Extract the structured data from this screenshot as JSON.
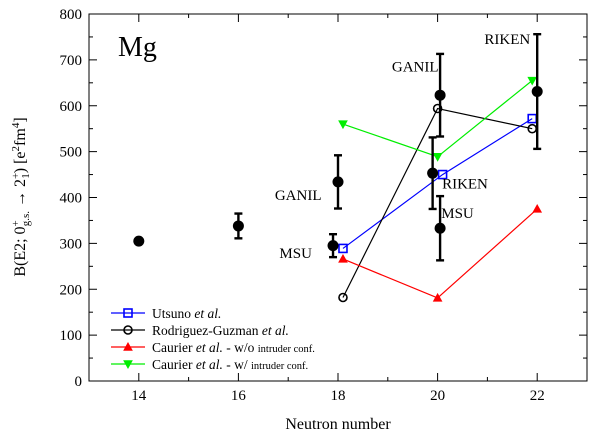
{
  "chart_data": {
    "type": "scatter",
    "panel_label": "Mg",
    "xlabel": "Neutron number",
    "ylabel_parts": {
      "prefix": "B(E2; 0",
      "sup1": "+",
      "sub1": "g.s.",
      "arrow": " → 2",
      "sup2": "+",
      "sub2": "1",
      "mid": ") [e",
      "sup3": "2",
      "mid2": "fm",
      "sup4": "4",
      "suffix": "]"
    },
    "xlim": [
      13,
      23
    ],
    "ylim": [
      0,
      800
    ],
    "x_ticks": [
      14,
      16,
      18,
      20,
      22
    ],
    "y_ticks": [
      0,
      100,
      200,
      300,
      400,
      500,
      600,
      700,
      800
    ],
    "experiment": {
      "points": [
        {
          "x": 14,
          "y": 305,
          "err": 0
        },
        {
          "x": 16,
          "y": 338,
          "err": 27
        },
        {
          "x": 17.9,
          "y": 295,
          "err": 25
        },
        {
          "x": 18.0,
          "y": 434,
          "err": 58
        },
        {
          "x": 19.9,
          "y": 453,
          "err": 78
        },
        {
          "x": 20.05,
          "y": 623,
          "err": 90
        },
        {
          "x": 20.05,
          "y": 333,
          "err": 70
        },
        {
          "x": 22.0,
          "y": 631,
          "err": 125
        }
      ]
    },
    "annotations": [
      {
        "text": "GANIL",
        "x": 17.2,
        "y": 395
      },
      {
        "text": "MSU",
        "x": 17.15,
        "y": 268
      },
      {
        "text": "GANIL",
        "x": 19.55,
        "y": 675
      },
      {
        "text": "RIKEN",
        "x": 20.55,
        "y": 420
      },
      {
        "text": "MSU",
        "x": 20.4,
        "y": 355
      },
      {
        "text": "RIKEN",
        "x": 21.4,
        "y": 735
      }
    ],
    "series": [
      {
        "name_parts": [
          "Utsuno ",
          "et al."
        ],
        "marker": "square",
        "color": "#0000ff",
        "x": [
          18.1,
          20.1,
          21.9
        ],
        "y": [
          289,
          450,
          572
        ]
      },
      {
        "name_parts": [
          "Rodriguez-Guzman ",
          "et al."
        ],
        "marker": "circle",
        "color": "#000000",
        "x": [
          18.1,
          20.0,
          21.9
        ],
        "y": [
          182,
          594,
          550
        ]
      },
      {
        "name_parts": [
          "Caurier ",
          "et al.",
          " - w/o ",
          "intruder conf."
        ],
        "marker": "triangle-up",
        "color": "#ff0000",
        "x": [
          18.1,
          20.0,
          22.0
        ],
        "y": [
          266,
          181,
          375
        ]
      },
      {
        "name_parts": [
          "Caurier ",
          "et al.",
          " - w/ ",
          "intruder conf."
        ],
        "marker": "triangle-down",
        "color": "#00ee00",
        "x": [
          18.1,
          20.0,
          21.9
        ],
        "y": [
          560,
          489,
          655
        ]
      }
    ],
    "legend_position": "bottom-left",
    "grid": false
  }
}
